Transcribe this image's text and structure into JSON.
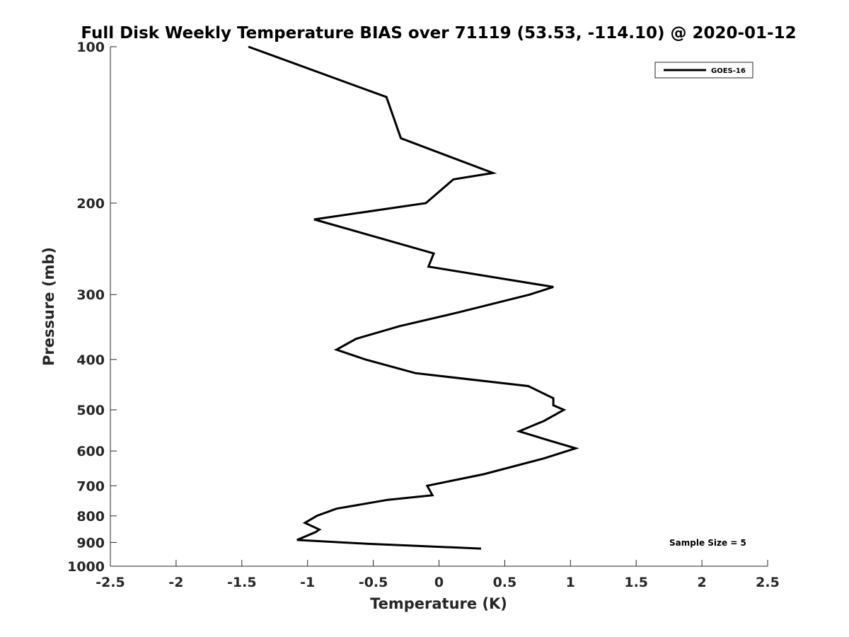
{
  "chart_data": {
    "type": "line",
    "title": "Full Disk Weekly Temperature BIAS over 71119 (53.53, -114.10) @ 2020-01-12",
    "xlabel": "Temperature (K)",
    "ylabel": "Pressure (mb)",
    "xlim": [
      -2.5,
      2.5
    ],
    "ylim": [
      100,
      1000
    ],
    "y_scale": "log",
    "y_reversed": true,
    "x_ticks": [
      "-2.5",
      "-2",
      "-1.5",
      "-1",
      "-0.5",
      "0",
      "0.5",
      "1",
      "1.5",
      "2",
      "2.5"
    ],
    "y_ticks": [
      "100",
      "200",
      "300",
      "400",
      "500",
      "600",
      "700",
      "800",
      "900",
      "1000"
    ],
    "grid": false,
    "legend_position": "top-right",
    "annotation": "Sample Size = 5",
    "series": [
      {
        "name": "GOES-16",
        "color": "#000000",
        "points": [
          {
            "t": -1.45,
            "p": 100
          },
          {
            "t": -0.4,
            "p": 125
          },
          {
            "t": -0.29,
            "p": 150
          },
          {
            "t": 0.41,
            "p": 175
          },
          {
            "t": 0.11,
            "p": 180
          },
          {
            "t": -0.1,
            "p": 200
          },
          {
            "t": -0.95,
            "p": 215
          },
          {
            "t": -0.04,
            "p": 250
          },
          {
            "t": -0.08,
            "p": 265
          },
          {
            "t": 0.87,
            "p": 290
          },
          {
            "t": 0.69,
            "p": 300
          },
          {
            "t": 0.14,
            "p": 325
          },
          {
            "t": -0.3,
            "p": 345
          },
          {
            "t": -0.63,
            "p": 365
          },
          {
            "t": -0.78,
            "p": 383
          },
          {
            "t": -0.56,
            "p": 400
          },
          {
            "t": -0.18,
            "p": 425
          },
          {
            "t": 0.68,
            "p": 450
          },
          {
            "t": 0.87,
            "p": 475
          },
          {
            "t": 0.87,
            "p": 490
          },
          {
            "t": 0.95,
            "p": 500
          },
          {
            "t": 0.8,
            "p": 525
          },
          {
            "t": 0.61,
            "p": 550
          },
          {
            "t": 0.81,
            "p": 570
          },
          {
            "t": 1.04,
            "p": 593
          },
          {
            "t": 0.8,
            "p": 620
          },
          {
            "t": 0.34,
            "p": 665
          },
          {
            "t": -0.09,
            "p": 700
          },
          {
            "t": -0.05,
            "p": 730
          },
          {
            "t": -0.39,
            "p": 745
          },
          {
            "t": -0.78,
            "p": 775
          },
          {
            "t": -0.93,
            "p": 800
          },
          {
            "t": -1.02,
            "p": 825
          },
          {
            "t": -0.91,
            "p": 850
          },
          {
            "t": -0.94,
            "p": 860
          },
          {
            "t": -1.08,
            "p": 890
          },
          {
            "t": -0.55,
            "p": 905
          },
          {
            "t": 0.32,
            "p": 925
          }
        ]
      }
    ]
  }
}
